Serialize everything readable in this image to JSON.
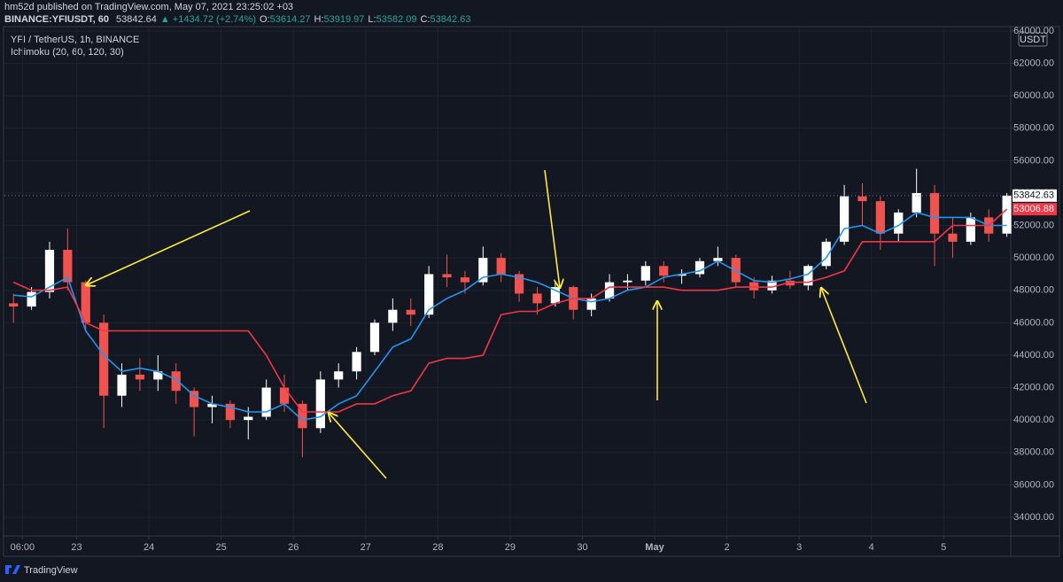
{
  "header": {
    "publisher": "hm52d published on TradingView.com, May 07, 2021 23:25:02 +03",
    "symbol": "BINANCE:YFIUSDT, 60",
    "price": "53842.64",
    "change": "▲ +1434.72 (+2.74%)",
    "ohlc": [
      {
        "key": "O:",
        "value": "53614.27"
      },
      {
        "key": "H:",
        "value": "53919.97"
      },
      {
        "key": "L:",
        "value": "53582.09"
      },
      {
        "key": "C:",
        "value": "53842.63"
      }
    ]
  },
  "footer": {
    "brand": "TradingView"
  },
  "chart_data": {
    "type": "candlestick",
    "title": "YFI / TetherUS, 1h, BINANCE",
    "indicator": "Ichimoku (20, 60, 120, 30)",
    "currency": "USDT",
    "up_color": "#ffffff",
    "down_color": "#ef5350",
    "x": [
      3,
      9,
      15,
      21,
      27,
      33,
      39,
      45,
      51,
      57,
      63,
      69,
      75,
      81,
      87,
      93,
      99,
      105,
      111,
      117,
      123,
      129,
      135,
      141,
      147,
      153,
      159,
      165,
      171,
      177,
      183,
      189,
      195,
      201,
      207,
      213,
      219,
      225,
      231,
      237,
      243,
      249,
      255,
      261,
      267,
      273,
      279,
      285,
      291,
      297,
      303,
      309,
      315,
      321,
      327,
      333
    ],
    "open": [
      47200,
      47000,
      47900,
      50500,
      48500,
      46000,
      41500,
      42800,
      42500,
      43000,
      41800,
      40800,
      41000,
      40000,
      40200,
      42000,
      41000,
      39500,
      42500,
      43000,
      44200,
      46000,
      46800,
      46500,
      49000,
      48800,
      48500,
      50000,
      49000,
      47800,
      47200,
      48200,
      46800,
      47500,
      48500,
      48600,
      49500,
      48900,
      49000,
      49800,
      50000,
      48500,
      48000,
      48600,
      48300,
      49500,
      51000,
      53800,
      53500,
      51500,
      52800,
      54000,
      51500,
      51000,
      52500,
      51500
    ],
    "high": [
      47800,
      48200,
      51000,
      51800,
      48600,
      46500,
      43500,
      43800,
      44000,
      43500,
      42000,
      41500,
      41200,
      40800,
      42500,
      42800,
      41200,
      43000,
      43500,
      44500,
      46200,
      47500,
      47500,
      49500,
      50200,
      49200,
      50700,
      50300,
      49200,
      48200,
      48500,
      48300,
      47800,
      49000,
      49000,
      49800,
      49800,
      49300,
      50000,
      50700,
      50200,
      48800,
      48900,
      49200,
      49600,
      51200,
      54500,
      54600,
      53800,
      53000,
      55500,
      54500,
      52500,
      52800,
      53000,
      54000
    ],
    "low": [
      46000,
      46800,
      47500,
      48000,
      45500,
      39500,
      40800,
      41800,
      41800,
      41000,
      39000,
      39800,
      39500,
      38800,
      40000,
      40500,
      37700,
      39200,
      42000,
      42500,
      44000,
      45500,
      45800,
      46300,
      48200,
      47800,
      48300,
      48500,
      47300,
      46500,
      47000,
      46200,
      46400,
      47300,
      48000,
      48300,
      48500,
      48400,
      48800,
      49500,
      48200,
      47500,
      47800,
      48100,
      48000,
      49300,
      50800,
      52000,
      50500,
      51000,
      52500,
      49500,
      50000,
      50800,
      51000,
      51300
    ],
    "close": [
      47000,
      47900,
      50500,
      48500,
      46000,
      41500,
      42800,
      42500,
      43000,
      41800,
      40800,
      41000,
      40000,
      40200,
      42000,
      41000,
      39500,
      42500,
      43000,
      44200,
      46000,
      46800,
      46500,
      49000,
      48800,
      48500,
      50000,
      49000,
      47800,
      47200,
      48200,
      46800,
      47500,
      48500,
      48600,
      49500,
      48900,
      49000,
      49800,
      50000,
      48500,
      48000,
      48600,
      48300,
      49500,
      51000,
      53800,
      53500,
      51500,
      52800,
      54000,
      51500,
      51000,
      52500,
      51500,
      53842.63
    ],
    "series": [
      {
        "color": "#2196f3",
        "values": [
          47700,
          47600,
          48200,
          48800,
          45500,
          44000,
          43000,
          43200,
          43000,
          42500,
          41500,
          41000,
          40800,
          40500,
          40500,
          41000,
          40000,
          40200,
          41000,
          41500,
          43000,
          44500,
          45000,
          46800,
          47500,
          48000,
          48800,
          49000,
          48800,
          48500,
          48000,
          47500,
          47300,
          47500,
          48000,
          48200,
          48800,
          49000,
          49200,
          49800,
          49200,
          48600,
          48500,
          48700,
          49000,
          50000,
          51800,
          52000,
          51500,
          52000,
          52800,
          52500,
          52500,
          52500,
          52000,
          52000
        ]
      },
      {
        "color": "#f23645",
        "values": [
          48500,
          48000,
          48000,
          48200,
          46000,
          45500,
          45500,
          45500,
          45500,
          45500,
          45500,
          45500,
          45500,
          45500,
          44000,
          42000,
          40500,
          40500,
          40500,
          41000,
          41000,
          41500,
          41800,
          43500,
          43800,
          43800,
          44000,
          46500,
          46700,
          46700,
          47200,
          47500,
          47500,
          48200,
          48200,
          48200,
          48200,
          48000,
          48000,
          48000,
          48200,
          48200,
          48200,
          48500,
          48500,
          48800,
          49200,
          51000,
          51000,
          51000,
          51000,
          51000,
          52000,
          52000,
          52000,
          53006.88
        ]
      }
    ],
    "xlim": [
      0,
      334
    ],
    "xticks": [
      {
        "value": 6,
        "label": "06:00"
      },
      {
        "value": 24,
        "label": "23"
      },
      {
        "value": 48,
        "label": "24"
      },
      {
        "value": 72,
        "label": "25"
      },
      {
        "value": 96,
        "label": "26"
      },
      {
        "value": 120,
        "label": "27"
      },
      {
        "value": 144,
        "label": "28"
      },
      {
        "value": 168,
        "label": "29"
      },
      {
        "value": 192,
        "label": "30"
      },
      {
        "value": 216,
        "label": "May"
      },
      {
        "value": 240,
        "label": "2"
      },
      {
        "value": 264,
        "label": "3"
      },
      {
        "value": 288,
        "label": "4"
      },
      {
        "value": 312,
        "label": "5"
      }
    ],
    "ylim": [
      32850,
      64270
    ],
    "yticks": [
      {
        "value": 34000,
        "label": "34000.00"
      },
      {
        "value": 36000,
        "label": "36000.00"
      },
      {
        "value": 38000,
        "label": "38000.00"
      },
      {
        "value": 40000,
        "label": "40000.00"
      },
      {
        "value": 42000,
        "label": "42000.00"
      },
      {
        "value": 44000,
        "label": "44000.00"
      },
      {
        "value": 46000,
        "label": "46000.00"
      },
      {
        "value": 48000,
        "label": "48000.00"
      },
      {
        "value": 50000,
        "label": "50000.00"
      },
      {
        "value": 52000,
        "label": "52000.00"
      },
      {
        "value": 54000,
        "label": "54000.00"
      },
      {
        "value": 56000,
        "label": "56000.00"
      },
      {
        "value": 58000,
        "label": "58000.00"
      },
      {
        "value": 60000,
        "label": "60000.00"
      },
      {
        "value": 62000,
        "label": "62000.00"
      },
      {
        "value": 64000,
        "label": "64000.00"
      }
    ],
    "grid": true
  }
}
